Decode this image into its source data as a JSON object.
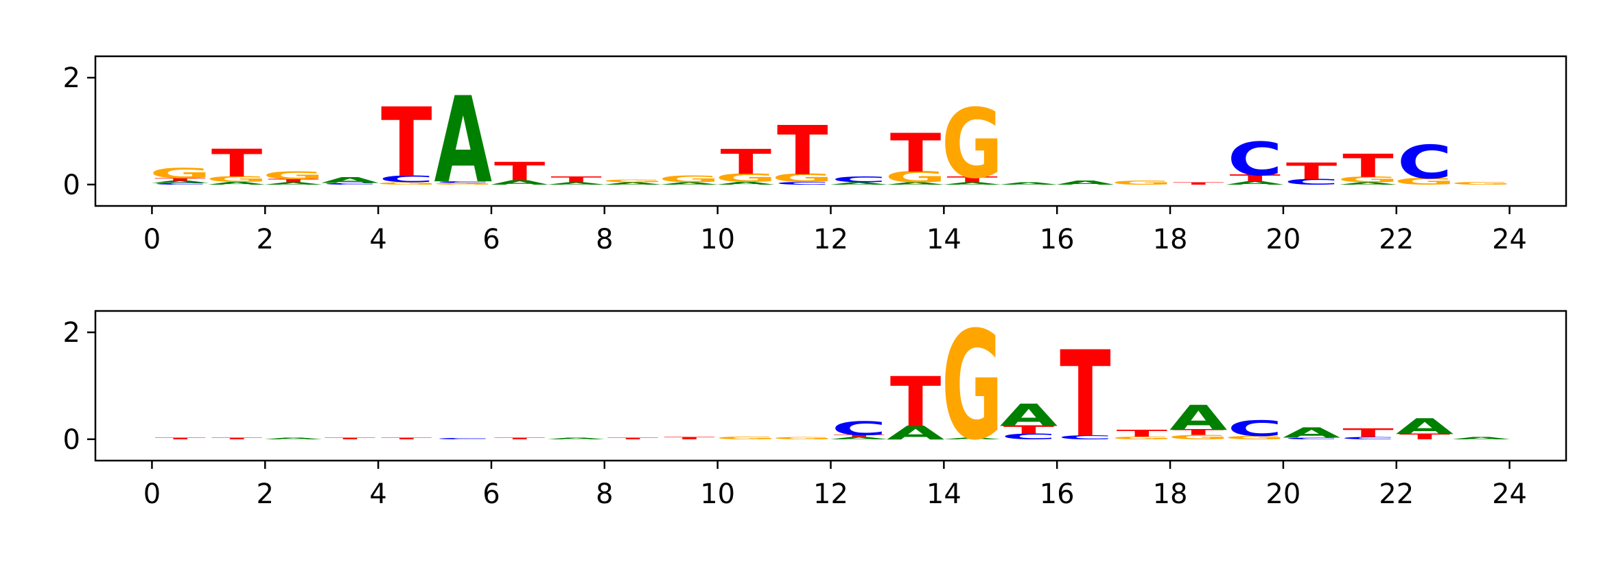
{
  "colors": {
    "A": "#008000",
    "C": "#0000ff",
    "G": "#ffa500",
    "T": "#ff0000"
  },
  "chart_data": [
    {
      "type": "sequence-logo",
      "xlim": [
        -1,
        25
      ],
      "ylim": [
        -0.4,
        2.4
      ],
      "xticks": [
        "0",
        "2",
        "4",
        "6",
        "8",
        "10",
        "12",
        "14",
        "16",
        "18",
        "20",
        "22",
        "24"
      ],
      "yticks": [
        "0",
        "2"
      ],
      "grid": false,
      "positions": [
        {
          "pos": 0,
          "heights": {
            "A": 0.04,
            "C": 0.03,
            "T": 0.05,
            "G": 0.18
          }
        },
        {
          "pos": 1,
          "heights": {
            "A": 0.05,
            "G": 0.1,
            "T": 0.5
          }
        },
        {
          "pos": 2,
          "heights": {
            "A": 0.04,
            "T": 0.06,
            "G": 0.14
          }
        },
        {
          "pos": 3,
          "heights": {
            "A": 0.1,
            "C": 0.03
          }
        },
        {
          "pos": 4,
          "heights": {
            "G": 0.04,
            "C": 0.12,
            "T": 1.25
          }
        },
        {
          "pos": 5,
          "heights": {
            "G": 0.03,
            "C": 0.03,
            "A": 1.55
          }
        },
        {
          "pos": 6,
          "heights": {
            "A": 0.08,
            "T": 0.33
          }
        },
        {
          "pos": 7,
          "heights": {
            "A": 0.04,
            "T": 0.1
          }
        },
        {
          "pos": 8,
          "heights": {
            "A": 0.04,
            "G": 0.05
          }
        },
        {
          "pos": 9,
          "heights": {
            "A": 0.04,
            "G": 0.12
          }
        },
        {
          "pos": 10,
          "heights": {
            "A": 0.05,
            "G": 0.15,
            "T": 0.45
          }
        },
        {
          "pos": 11,
          "heights": {
            "C": 0.05,
            "G": 0.15,
            "T": 0.88
          }
        },
        {
          "pos": 12,
          "heights": {
            "A": 0.04,
            "C": 0.1
          }
        },
        {
          "pos": 13,
          "heights": {
            "A": 0.04,
            "G": 0.2,
            "T": 0.7
          }
        },
        {
          "pos": 14,
          "heights": {
            "A": 0.04,
            "T": 0.1,
            "G": 1.25
          }
        },
        {
          "pos": 15,
          "heights": {
            "A": 0.04
          }
        },
        {
          "pos": 16,
          "heights": {
            "A": 0.07
          }
        },
        {
          "pos": 17,
          "heights": {
            "G": 0.07
          }
        },
        {
          "pos": 18,
          "heights": {
            "T": 0.04
          }
        },
        {
          "pos": 19,
          "heights": {
            "A": 0.06,
            "T": 0.12,
            "C": 0.6
          }
        },
        {
          "pos": 20,
          "heights": {
            "C": 0.1,
            "T": 0.3
          }
        },
        {
          "pos": 21,
          "heights": {
            "A": 0.04,
            "G": 0.1,
            "T": 0.42
          }
        },
        {
          "pos": 22,
          "heights": {
            "G": 0.12,
            "C": 0.6
          }
        },
        {
          "pos": 23,
          "heights": {
            "G": 0.05
          }
        }
      ]
    },
    {
      "type": "sequence-logo",
      "xlim": [
        -1,
        25
      ],
      "ylim": [
        -0.4,
        2.4
      ],
      "xticks": [
        "0",
        "2",
        "4",
        "6",
        "8",
        "10",
        "12",
        "14",
        "16",
        "18",
        "20",
        "22",
        "24"
      ],
      "yticks": [
        "0",
        "2"
      ],
      "grid": false,
      "positions": [
        {
          "pos": 0,
          "heights": {
            "T": 0.03
          }
        },
        {
          "pos": 1,
          "heights": {
            "T": 0.03
          }
        },
        {
          "pos": 2,
          "heights": {
            "A": 0.03
          }
        },
        {
          "pos": 3,
          "heights": {
            "T": 0.03
          }
        },
        {
          "pos": 4,
          "heights": {
            "T": 0.03
          }
        },
        {
          "pos": 5,
          "heights": {
            "C": 0.02
          }
        },
        {
          "pos": 6,
          "heights": {
            "T": 0.03
          }
        },
        {
          "pos": 7,
          "heights": {
            "A": 0.03
          }
        },
        {
          "pos": 8,
          "heights": {
            "T": 0.03
          }
        },
        {
          "pos": 9,
          "heights": {
            "T": 0.04
          }
        },
        {
          "pos": 10,
          "heights": {
            "G": 0.05
          }
        },
        {
          "pos": 11,
          "heights": {
            "G": 0.04
          }
        },
        {
          "pos": 12,
          "heights": {
            "A": 0.04,
            "T": 0.04,
            "C": 0.25
          }
        },
        {
          "pos": 13,
          "heights": {
            "A": 0.25,
            "T": 0.9
          }
        },
        {
          "pos": 14,
          "heights": {
            "A": 0.03,
            "G": 1.95
          }
        },
        {
          "pos": 15,
          "heights": {
            "A": 0.4,
            "T": 0.15,
            "C": 0.1
          }
        },
        {
          "pos": 16,
          "heights": {
            "C": 0.07,
            "T": 1.55
          }
        },
        {
          "pos": 17,
          "heights": {
            "G": 0.05,
            "T": 0.12
          }
        },
        {
          "pos": 18,
          "heights": {
            "T": 0.1,
            "G": 0.08,
            "A": 0.45
          }
        },
        {
          "pos": 19,
          "heights": {
            "G": 0.06,
            "C": 0.28
          }
        },
        {
          "pos": 20,
          "heights": {
            "C": 0.03,
            "A": 0.18
          }
        },
        {
          "pos": 21,
          "heights": {
            "C": 0.04,
            "T": 0.15
          }
        },
        {
          "pos": 22,
          "heights": {
            "T": 0.1,
            "A": 0.28
          }
        },
        {
          "pos": 23,
          "heights": {
            "A": 0.04
          }
        }
      ]
    }
  ]
}
